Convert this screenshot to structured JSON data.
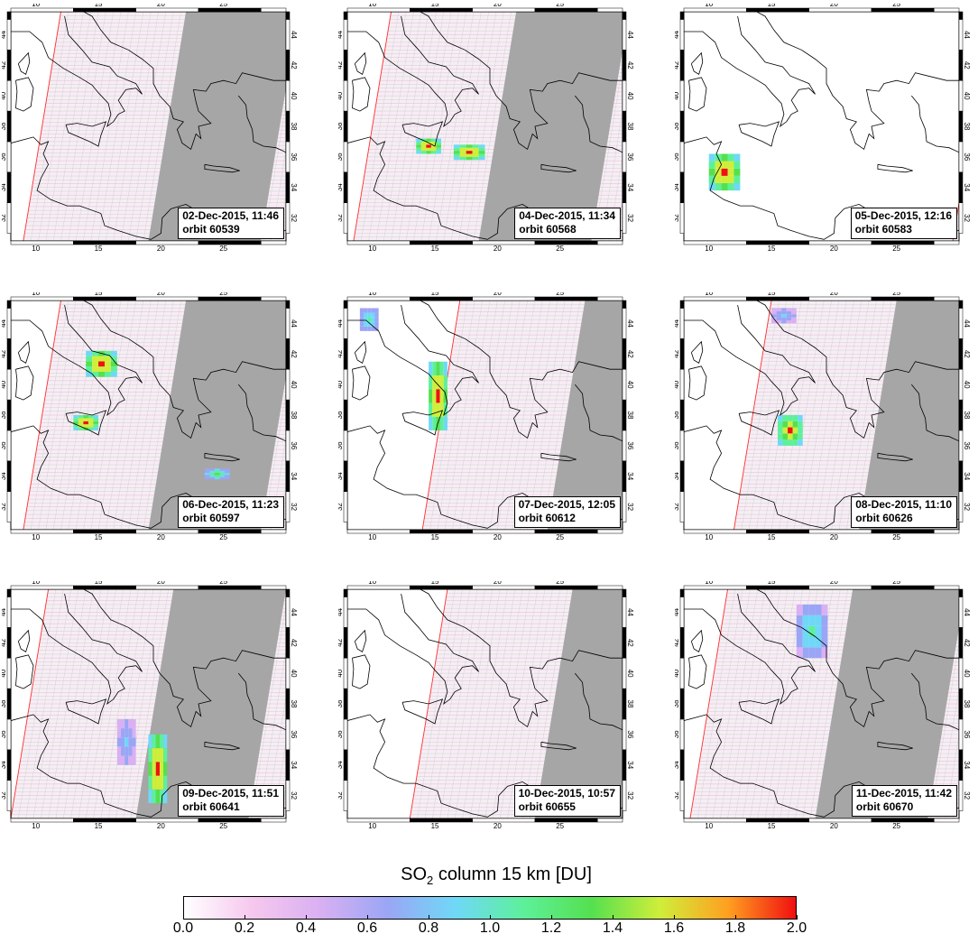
{
  "axes": {
    "lon_ticks": [
      "10",
      "15",
      "20",
      "25"
    ],
    "lat_ticks": [
      "32",
      "34",
      "36",
      "38",
      "40",
      "42",
      "44"
    ],
    "lon_range": [
      8,
      30
    ],
    "lat_range": [
      30.5,
      45.5
    ]
  },
  "panels": [
    {
      "date_time": "02-Dec-2015, 11:46",
      "orbit": "orbit 60539",
      "swath_edge_lon": 9.0,
      "so2_plumes": []
    },
    {
      "date_time": "04-Dec-2015, 11:34",
      "orbit": "orbit 60568",
      "swath_edge_lon": 8.5,
      "so2_plumes": [
        {
          "lon": [
            13.5,
            15.5
          ],
          "lat": [
            36.2,
            37.2
          ],
          "max_du": 2.0
        },
        {
          "lon": [
            16.5,
            19.0
          ],
          "lat": [
            35.8,
            36.8
          ],
          "max_du": 2.0
        }
      ]
    },
    {
      "date_time": "05-Dec-2015, 12:16",
      "orbit": "orbit 60583",
      "swath_edge_lon": 29.5,
      "so2_plumes": [
        {
          "lon": [
            10.0,
            12.5
          ],
          "lat": [
            33.8,
            36.2
          ],
          "max_du": 2.0
        }
      ]
    },
    {
      "date_time": "06-Dec-2015, 11:23",
      "orbit": "orbit 60597",
      "swath_edge_lon": 9.0,
      "so2_plumes": [
        {
          "lon": [
            14.0,
            16.5
          ],
          "lat": [
            40.5,
            42.2
          ],
          "max_du": 2.0
        },
        {
          "lon": [
            13.0,
            15.0
          ],
          "lat": [
            37.0,
            38.0
          ],
          "max_du": 2.0
        },
        {
          "lon": [
            23.5,
            25.5
          ],
          "lat": [
            33.8,
            34.5
          ],
          "max_du": 1.3
        }
      ]
    },
    {
      "date_time": "07-Dec-2015, 12:05",
      "orbit": "orbit 60612",
      "swath_edge_lon": 14.0,
      "so2_plumes": [
        {
          "lon": [
            14.5,
            16.0
          ],
          "lat": [
            37.0,
            41.5
          ],
          "max_du": 2.0
        },
        {
          "lon": [
            9.0,
            10.5
          ],
          "lat": [
            43.5,
            45.0
          ],
          "max_du": 1.2
        }
      ]
    },
    {
      "date_time": "08-Dec-2015, 11:10",
      "orbit": "orbit 60626",
      "swath_edge_lon": 12.0,
      "so2_plumes": [
        {
          "lon": [
            15.5,
            17.5
          ],
          "lat": [
            36.0,
            38.0
          ],
          "max_du": 1.9
        },
        {
          "lon": [
            15.0,
            17.0
          ],
          "lat": [
            44.0,
            45.0
          ],
          "max_du": 0.9
        }
      ]
    },
    {
      "date_time": "09-Dec-2015, 11:51",
      "orbit": "orbit 60641",
      "swath_edge_lon": 8.0,
      "so2_plumes": [
        {
          "lon": [
            19.0,
            20.5
          ],
          "lat": [
            31.5,
            36.0
          ],
          "max_du": 2.0
        },
        {
          "lon": [
            16.5,
            18.0
          ],
          "lat": [
            34.0,
            37.0
          ],
          "max_du": 0.9
        }
      ]
    },
    {
      "date_time": "10-Dec-2015, 10:57",
      "orbit": "orbit 60655",
      "swath_edge_lon": 13.0,
      "so2_plumes": []
    },
    {
      "date_time": "11-Dec-2015, 11:42",
      "orbit": "orbit 60670",
      "swath_edge_lon": 8.5,
      "so2_plumes": [
        {
          "lon": [
            17.0,
            19.5
          ],
          "lat": [
            41.0,
            44.5
          ],
          "max_du": 1.1
        }
      ]
    }
  ],
  "colorbar": {
    "title_main": "SO",
    "title_sub": "2",
    "title_rest": " column 15 km [DU]",
    "ticks": [
      "0.0",
      "0.2",
      "0.4",
      "0.6",
      "0.8",
      "1.0",
      "1.2",
      "1.4",
      "1.6",
      "1.8",
      "2.0"
    ],
    "range": [
      0.0,
      2.0
    ],
    "colors": [
      "#ffffff",
      "#f6c8ee",
      "#d9b0f2",
      "#9aa6f5",
      "#6fd8f7",
      "#5df09a",
      "#55e04f",
      "#cfee3a",
      "#ffa020",
      "#f01010"
    ]
  },
  "colors": {
    "night_side": "#a6a6a6",
    "swath_edge": "#ff3030",
    "coast": "#000000",
    "grid_line": "#c8c8c8",
    "pixel_tint": "#e9a6d8"
  }
}
